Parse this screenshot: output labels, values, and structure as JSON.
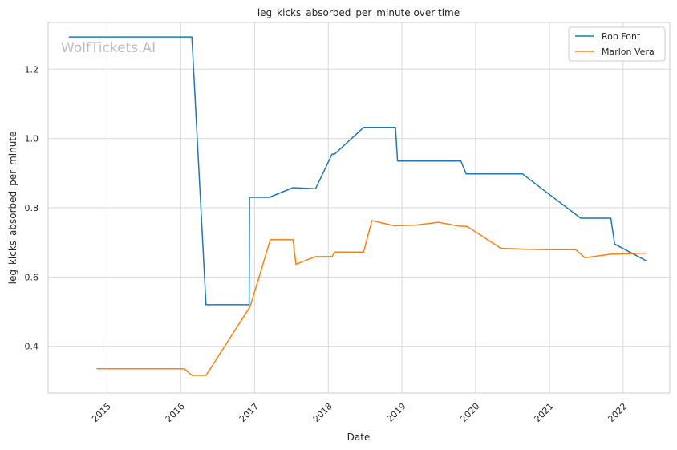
{
  "chart_data": {
    "type": "line",
    "title": "leg_kicks_absorbed_per_minute over time",
    "xlabel": "Date",
    "ylabel": "leg_kicks_absorbed_per_minute",
    "watermark": "WolfTickets.AI",
    "xlim": [
      "2014-03-15",
      "2022-08-20"
    ],
    "ylim": [
      0.265,
      1.335
    ],
    "x_ticks": [
      "2015",
      "2016",
      "2017",
      "2018",
      "2019",
      "2020",
      "2021",
      "2022"
    ],
    "y_ticks": [
      "0.4",
      "0.6",
      "0.8",
      "1.0",
      "1.2"
    ],
    "grid": true,
    "legend_position": "top-right",
    "colors": {
      "Rob Font": "#1f77b4",
      "Marlon Vera": "#ff7f0e",
      "grid": "#d9d9d9",
      "frame": "#cccccc"
    },
    "series": [
      {
        "name": "Rob Font",
        "points": [
          [
            "2014-06-25",
            1.293
          ],
          [
            "2016-02-25",
            1.293
          ],
          [
            "2016-05-05",
            0.52
          ],
          [
            "2016-12-05",
            0.52
          ],
          [
            "2016-12-07",
            0.83
          ],
          [
            "2017-03-15",
            0.83
          ],
          [
            "2017-07-10",
            0.858
          ],
          [
            "2017-10-30",
            0.855
          ],
          [
            "2018-01-20",
            0.955
          ],
          [
            "2018-02-01",
            0.955
          ],
          [
            "2018-06-25",
            1.032
          ],
          [
            "2018-11-30",
            1.032
          ],
          [
            "2018-12-10",
            0.935
          ],
          [
            "2019-10-20",
            0.935
          ],
          [
            "2019-11-15",
            0.898
          ],
          [
            "2020-08-20",
            0.898
          ],
          [
            "2020-12-10",
            0.848
          ],
          [
            "2021-06-05",
            0.77
          ],
          [
            "2021-11-01",
            0.77
          ],
          [
            "2021-11-20",
            0.695
          ],
          [
            "2022-04-25",
            0.647
          ]
        ]
      },
      {
        "name": "Marlon Vera",
        "points": [
          [
            "2014-11-10",
            0.335
          ],
          [
            "2016-01-20",
            0.335
          ],
          [
            "2016-02-25",
            0.316
          ],
          [
            "2016-05-05",
            0.316
          ],
          [
            "2016-12-05",
            0.51
          ],
          [
            "2016-12-10",
            0.515
          ],
          [
            "2017-03-20",
            0.708
          ],
          [
            "2017-07-10",
            0.708
          ],
          [
            "2017-07-25",
            0.637
          ],
          [
            "2017-10-30",
            0.659
          ],
          [
            "2018-01-20",
            0.659
          ],
          [
            "2018-02-01",
            0.672
          ],
          [
            "2018-06-25",
            0.672
          ],
          [
            "2018-08-05",
            0.763
          ],
          [
            "2018-11-25",
            0.748
          ],
          [
            "2019-03-10",
            0.75
          ],
          [
            "2019-07-01",
            0.758
          ],
          [
            "2019-10-10",
            0.747
          ],
          [
            "2019-11-20",
            0.746
          ],
          [
            "2020-05-05",
            0.683
          ],
          [
            "2020-09-10",
            0.68
          ],
          [
            "2020-12-20",
            0.679
          ],
          [
            "2021-05-10",
            0.679
          ],
          [
            "2021-06-25",
            0.656
          ],
          [
            "2021-11-01",
            0.666
          ],
          [
            "2022-04-25",
            0.669
          ]
        ]
      }
    ]
  }
}
